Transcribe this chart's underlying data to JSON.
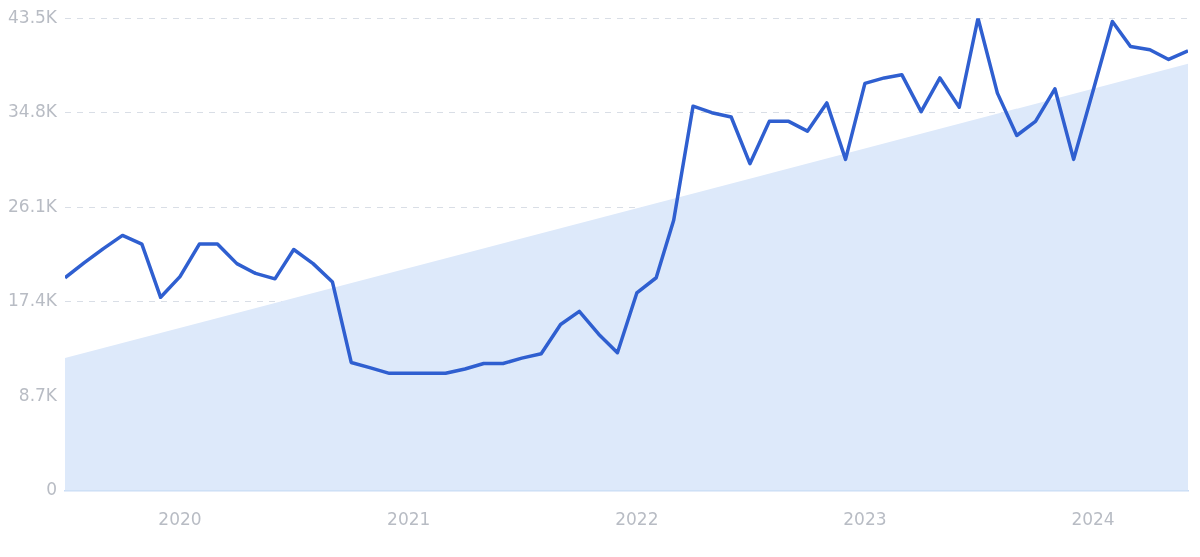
{
  "chart_data": {
    "type": "line",
    "xlim": [
      "2019-07",
      "2024-06"
    ],
    "xticks": [
      "2020",
      "2021",
      "2022",
      "2023",
      "2024"
    ],
    "ylim": [
      0,
      43500
    ],
    "yticks": [
      0,
      {
        "value": 8700,
        "label": "8.7K"
      },
      {
        "value": 17400,
        "label": "17.4K"
      },
      {
        "value": 26100,
        "label": "26.1K"
      },
      {
        "value": 34800,
        "label": "34.8K"
      },
      {
        "value": 43500,
        "label": "43.5K"
      }
    ],
    "grid": "y",
    "legend": false,
    "marker": "none",
    "line_style": "solid",
    "series": [
      {
        "type": "area",
        "color": "#dde9fa",
        "x": [
          "2019-07",
          "2024-06"
        ],
        "values": [
          12200,
          39300
        ]
      },
      {
        "color": "#2f5fd0",
        "x": [
          "2019-07",
          "2019-08",
          "2019-09",
          "2019-10",
          "2019-11",
          "2019-12",
          "2020-01",
          "2020-02",
          "2020-03",
          "2020-04",
          "2020-05",
          "2020-06",
          "2020-07",
          "2020-08",
          "2020-09",
          "2020-10",
          "2020-11",
          "2020-12",
          "2021-01",
          "2021-02",
          "2021-03",
          "2021-04",
          "2021-05",
          "2021-06",
          "2021-07",
          "2021-08",
          "2021-09",
          "2021-10",
          "2021-11",
          "2021-12",
          "2022-01",
          "2022-02",
          "2022-03",
          "2022-04",
          "2022-05",
          "2022-06",
          "2022-07",
          "2022-08",
          "2022-09",
          "2022-10",
          "2022-11",
          "2022-12",
          "2023-01",
          "2023-02",
          "2023-03",
          "2023-04",
          "2023-05",
          "2023-06",
          "2023-07",
          "2023-08",
          "2023-09",
          "2023-10",
          "2023-11",
          "2023-12",
          "2024-01",
          "2024-02",
          "2024-03",
          "2024-04",
          "2024-05",
          "2024-06"
        ],
        "values": [
          19600,
          21000,
          22300,
          23500,
          22700,
          17800,
          19700,
          22700,
          22700,
          20900,
          20000,
          19500,
          22200,
          20900,
          19200,
          11800,
          11300,
          10800,
          10800,
          10800,
          10800,
          11200,
          11700,
          11700,
          12200,
          12600,
          15300,
          16500,
          14400,
          12700,
          18200,
          19600,
          24900,
          35400,
          34800,
          34400,
          30100,
          34000,
          34000,
          33100,
          35700,
          30500,
          37500,
          38000,
          38300,
          34900,
          38000,
          35300,
          43500,
          36600,
          32700,
          34000,
          37000,
          30500,
          36800,
          43200,
          40900,
          40600,
          39700,
          40500
        ]
      }
    ]
  }
}
